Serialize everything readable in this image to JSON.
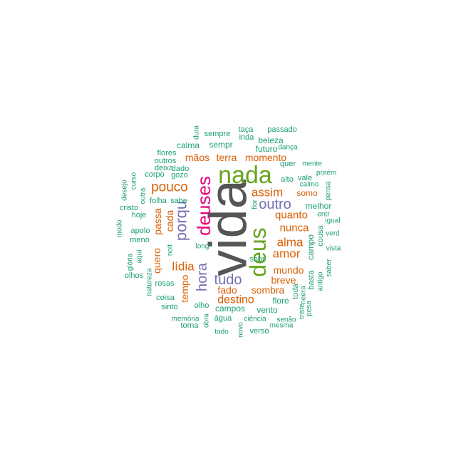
{
  "palette": {
    "gray": "#555555",
    "magenta": "#e6007e",
    "green": "#66a61e",
    "purple": "#7570b3",
    "orange": "#d95f02",
    "teal": "#1b9e77"
  },
  "words": [
    {
      "text": "vida",
      "color": "gray"
    },
    {
      "text": "nada",
      "color": "green"
    },
    {
      "text": "deus",
      "color": "green"
    },
    {
      "text": "deuses",
      "color": "magenta"
    },
    {
      "text": "porqu",
      "color": "purple"
    },
    {
      "text": "hora",
      "color": "purple"
    },
    {
      "text": "tudo",
      "color": "purple"
    },
    {
      "text": "outro",
      "color": "purple"
    },
    {
      "text": "assim",
      "color": "orange"
    },
    {
      "text": "pouco",
      "color": "orange"
    },
    {
      "text": "alma",
      "color": "orange"
    },
    {
      "text": "amor",
      "color": "orange"
    },
    {
      "text": "lídia",
      "color": "orange"
    },
    {
      "text": "destino",
      "color": "orange"
    },
    {
      "text": "quanto",
      "color": "orange"
    },
    {
      "text": "nunca",
      "color": "orange"
    },
    {
      "text": "mundo",
      "color": "orange"
    },
    {
      "text": "breve",
      "color": "orange"
    },
    {
      "text": "sombra",
      "color": "orange"
    },
    {
      "text": "fado",
      "color": "orange"
    },
    {
      "text": "momento",
      "color": "orange"
    },
    {
      "text": "terra",
      "color": "orange"
    },
    {
      "text": "mãos",
      "color": "orange"
    },
    {
      "text": "cada",
      "color": "orange"
    },
    {
      "text": "passa",
      "color": "orange"
    },
    {
      "text": "quero",
      "color": "orange"
    },
    {
      "text": "tempo",
      "color": "orange"
    },
    {
      "text": "somo",
      "color": "orange"
    },
    {
      "text": "calma",
      "color": "teal"
    },
    {
      "text": "sempr",
      "color": "teal"
    },
    {
      "text": "futuro",
      "color": "teal"
    },
    {
      "text": "beleza",
      "color": "teal"
    },
    {
      "text": "sempre",
      "color": "teal"
    },
    {
      "text": "inda",
      "color": "teal"
    },
    {
      "text": "taça",
      "color": "teal"
    },
    {
      "text": "passado",
      "color": "teal"
    },
    {
      "text": "dura",
      "color": "teal"
    },
    {
      "text": "dança",
      "color": "teal"
    },
    {
      "text": "quer",
      "color": "teal"
    },
    {
      "text": "mente",
      "color": "teal"
    },
    {
      "text": "flores",
      "color": "teal"
    },
    {
      "text": "outros",
      "color": "teal"
    },
    {
      "text": "deixa",
      "color": "teal"
    },
    {
      "text": "dado",
      "color": "teal"
    },
    {
      "text": "corpo",
      "color": "teal"
    },
    {
      "text": "gozo",
      "color": "teal"
    },
    {
      "text": "curso",
      "color": "teal"
    },
    {
      "text": "desejo",
      "color": "teal"
    },
    {
      "text": "outra",
      "color": "teal"
    },
    {
      "text": "folha",
      "color": "teal"
    },
    {
      "text": "sabe",
      "color": "teal"
    },
    {
      "text": "cristo",
      "color": "teal"
    },
    {
      "text": "hoje",
      "color": "teal"
    },
    {
      "text": "modo",
      "color": "teal"
    },
    {
      "text": "apolo",
      "color": "teal"
    },
    {
      "text": "meno",
      "color": "teal"
    },
    {
      "text": "noit",
      "color": "teal"
    },
    {
      "text": "long",
      "color": "teal"
    },
    {
      "text": "glória",
      "color": "teal"
    },
    {
      "text": "aqui",
      "color": "teal"
    },
    {
      "text": "olhos",
      "color": "teal"
    },
    {
      "text": "natureza",
      "color": "teal"
    },
    {
      "text": "rosas",
      "color": "teal"
    },
    {
      "text": "coisa",
      "color": "teal"
    },
    {
      "text": "sinto",
      "color": "teal"
    },
    {
      "text": "olho",
      "color": "teal"
    },
    {
      "text": "campos",
      "color": "teal"
    },
    {
      "text": "vento",
      "color": "teal"
    },
    {
      "text": "flore",
      "color": "teal"
    },
    {
      "text": "sobr",
      "color": "teal"
    },
    {
      "text": "alto",
      "color": "teal"
    },
    {
      "text": "vale",
      "color": "teal"
    },
    {
      "text": "calmo",
      "color": "teal"
    },
    {
      "text": "porém",
      "color": "teal"
    },
    {
      "text": "pensa",
      "color": "teal"
    },
    {
      "text": "melhor",
      "color": "teal"
    },
    {
      "text": "flor",
      "color": "teal"
    },
    {
      "text": "entr",
      "color": "teal"
    },
    {
      "text": "igual",
      "color": "teal"
    },
    {
      "text": "cousa",
      "color": "teal"
    },
    {
      "text": "verd",
      "color": "teal"
    },
    {
      "text": "campo",
      "color": "teal"
    },
    {
      "text": "vista",
      "color": "teal"
    },
    {
      "text": "saber",
      "color": "teal"
    },
    {
      "text": "basta",
      "color": "teal"
    },
    {
      "text": "antigo",
      "color": "teal"
    },
    {
      "text": "toda",
      "color": "teal"
    },
    {
      "text": "neera",
      "color": "teal"
    },
    {
      "text": "triste",
      "color": "teal"
    },
    {
      "text": "pesa",
      "color": "teal"
    },
    {
      "text": "memória",
      "color": "teal"
    },
    {
      "text": "torna",
      "color": "teal"
    },
    {
      "text": "obra",
      "color": "teal"
    },
    {
      "text": "água",
      "color": "teal"
    },
    {
      "text": "ciência",
      "color": "teal"
    },
    {
      "text": "senão",
      "color": "teal"
    },
    {
      "text": "mesma",
      "color": "teal"
    },
    {
      "text": "todo",
      "color": "teal"
    },
    {
      "text": "novo",
      "color": "teal"
    },
    {
      "text": "verso",
      "color": "teal"
    }
  ]
}
